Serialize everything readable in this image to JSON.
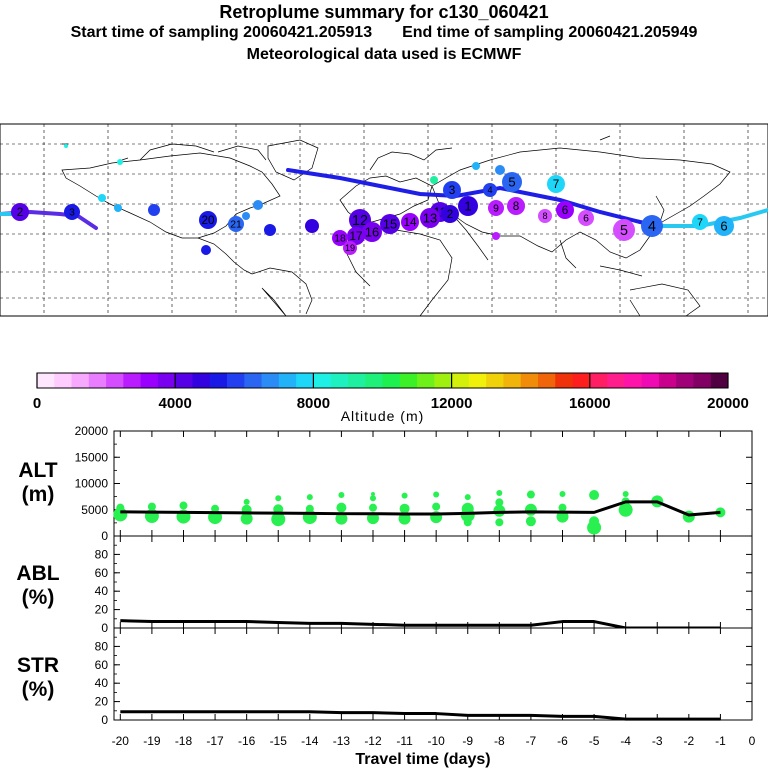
{
  "header": {
    "title": "Retroplume summary for c130_060421",
    "start": "Start time of sampling 20060421.205913",
    "end": "End time of sampling 20060421.205949",
    "met": "Meteorological data used is ECMWF"
  },
  "colors": {
    "palette": [
      "#ffe6ff",
      "#ffccff",
      "#f7a8ff",
      "#e87dff",
      "#d44dff",
      "#b81cff",
      "#9900ff",
      "#7a00f0",
      "#5500e6",
      "#3300e0",
      "#1a1ae6",
      "#2240f0",
      "#2a66f2",
      "#2b8cf5",
      "#22b2f7",
      "#1ed6f7",
      "#1ef0e6",
      "#1ef0c0",
      "#1ef0a0",
      "#1ef07a",
      "#1ef050",
      "#3cf028",
      "#6ef01a",
      "#a0f00f",
      "#d2f00a",
      "#f0f00a",
      "#f0d20a",
      "#f0b40a",
      "#f08c0a",
      "#f0640a",
      "#f0320a",
      "#ff1e1e",
      "#ff1e64",
      "#ff1e8c",
      "#ff14aa",
      "#f00ab4",
      "#c8008c",
      "#a00078",
      "#820064",
      "#500040"
    ],
    "track": "#1e1ee6",
    "line": "#000000",
    "marker": "#28f050"
  },
  "colorbar": {
    "ticks": [
      "0",
      "4000",
      "8000",
      "12000",
      "16000",
      "20000"
    ],
    "label": "Altitude (m)"
  },
  "map": {
    "labels": [
      "2",
      "3",
      "7",
      "5",
      "6",
      "9",
      "8",
      "1",
      "4",
      "5",
      "6",
      "11",
      "12",
      "13",
      "14",
      "15",
      "16",
      "17",
      "18",
      "19",
      "20",
      "21",
      "2",
      "3",
      "4",
      "6",
      "7",
      "8"
    ]
  },
  "chart_data": [
    {
      "type": "line",
      "name": "ALT",
      "ylabel": "ALT\n(m)",
      "ylabel_lines": [
        "ALT",
        "(m)"
      ],
      "ylim": [
        0,
        20000
      ],
      "yticks": [
        "0",
        "5000",
        "10000",
        "15000",
        "20000"
      ],
      "x": [
        -20,
        -19,
        -18,
        -17,
        -16,
        -15,
        -14,
        -13,
        -12,
        -11,
        -10,
        -9,
        -8,
        -7,
        -6,
        -5,
        -4,
        -3,
        -2,
        -1
      ],
      "values": [
        4600,
        4550,
        4500,
        4450,
        4400,
        4350,
        4300,
        4250,
        4250,
        4200,
        4200,
        4300,
        4500,
        4600,
        4550,
        4500,
        6500,
        6500,
        4000,
        4500
      ],
      "scatter": [
        [
          -20,
          4100,
          7
        ],
        [
          -20,
          5400,
          4
        ],
        [
          -19,
          3800,
          7
        ],
        [
          -19,
          5600,
          4
        ],
        [
          -18,
          3700,
          7
        ],
        [
          -18,
          5800,
          4
        ],
        [
          -17,
          3600,
          7
        ],
        [
          -17,
          5200,
          4
        ],
        [
          -16,
          3300,
          6
        ],
        [
          -16,
          5000,
          5
        ],
        [
          -16,
          6500,
          3
        ],
        [
          -15,
          3200,
          7
        ],
        [
          -15,
          5100,
          5
        ],
        [
          -15,
          7200,
          3
        ],
        [
          -14,
          3600,
          7
        ],
        [
          -14,
          5200,
          4
        ],
        [
          -14,
          7400,
          3
        ],
        [
          -13,
          3300,
          6
        ],
        [
          -13,
          5400,
          5
        ],
        [
          -13,
          7800,
          3
        ],
        [
          -12,
          3400,
          6
        ],
        [
          -12,
          5400,
          4
        ],
        [
          -12,
          7200,
          3
        ],
        [
          -12,
          8000,
          2
        ],
        [
          -11,
          3300,
          6
        ],
        [
          -11,
          5200,
          5
        ],
        [
          -11,
          7700,
          3
        ],
        [
          -10,
          3600,
          6
        ],
        [
          -10,
          5600,
          4
        ],
        [
          -10,
          7900,
          3
        ],
        [
          -9,
          2600,
          4
        ],
        [
          -9,
          4000,
          7
        ],
        [
          -9,
          5200,
          6
        ],
        [
          -9,
          7400,
          3
        ],
        [
          -8,
          2600,
          4
        ],
        [
          -8,
          4800,
          6
        ],
        [
          -8,
          6400,
          4
        ],
        [
          -8,
          8200,
          3
        ],
        [
          -7,
          2800,
          5
        ],
        [
          -7,
          5000,
          6
        ],
        [
          -7,
          7900,
          4
        ],
        [
          -6,
          3700,
          6
        ],
        [
          -6,
          5400,
          4
        ],
        [
          -6,
          8000,
          3
        ],
        [
          -5,
          1600,
          7
        ],
        [
          -5,
          2800,
          5
        ],
        [
          -5,
          7800,
          5
        ],
        [
          -4,
          5000,
          7
        ],
        [
          -4,
          6600,
          4
        ],
        [
          -4,
          8000,
          3
        ],
        [
          -3,
          6600,
          6
        ],
        [
          -2,
          3700,
          6
        ],
        [
          -1,
          4500,
          5
        ]
      ]
    },
    {
      "type": "line",
      "name": "ABL",
      "ylabel": "ABL\n(%)",
      "ylabel_lines": [
        "ABL",
        "(%)"
      ],
      "ylim": [
        0,
        100
      ],
      "yticks": [
        "0",
        "20",
        "40",
        "60",
        "80"
      ],
      "x": [
        -20,
        -19,
        -18,
        -17,
        -16,
        -15,
        -14,
        -13,
        -12,
        -11,
        -10,
        -9,
        -8,
        -7,
        -6,
        -5,
        -4,
        -3,
        -2,
        -1
      ],
      "values": [
        8,
        7,
        7,
        7,
        7,
        6,
        5,
        5,
        4,
        3,
        3,
        3,
        3,
        3,
        7,
        7,
        0,
        0,
        0,
        0
      ]
    },
    {
      "type": "line",
      "name": "STR",
      "ylabel": "STR\n(%)",
      "ylabel_lines": [
        "STR",
        "(%)"
      ],
      "ylim": [
        0,
        100
      ],
      "yticks": [
        "0",
        "20",
        "40",
        "60",
        "80"
      ],
      "x": [
        -20,
        -19,
        -18,
        -17,
        -16,
        -15,
        -14,
        -13,
        -12,
        -11,
        -10,
        -9,
        -8,
        -7,
        -6,
        -5,
        -4,
        -3,
        -2,
        -1
      ],
      "values": [
        9,
        9,
        9,
        9,
        9,
        9,
        9,
        8,
        8,
        7,
        7,
        5,
        5,
        5,
        4,
        4,
        1,
        1,
        1,
        1
      ]
    }
  ],
  "xaxis": {
    "ticks": [
      "-20",
      "-19",
      "-18",
      "-17",
      "-16",
      "-15",
      "-14",
      "-13",
      "-12",
      "-11",
      "-10",
      "-9",
      "-8",
      "-7",
      "-6",
      "-5",
      "-4",
      "-3",
      "-2",
      "-1",
      "0"
    ],
    "label": "Travel time (days)",
    "xlim": [
      -20.2,
      0
    ]
  }
}
